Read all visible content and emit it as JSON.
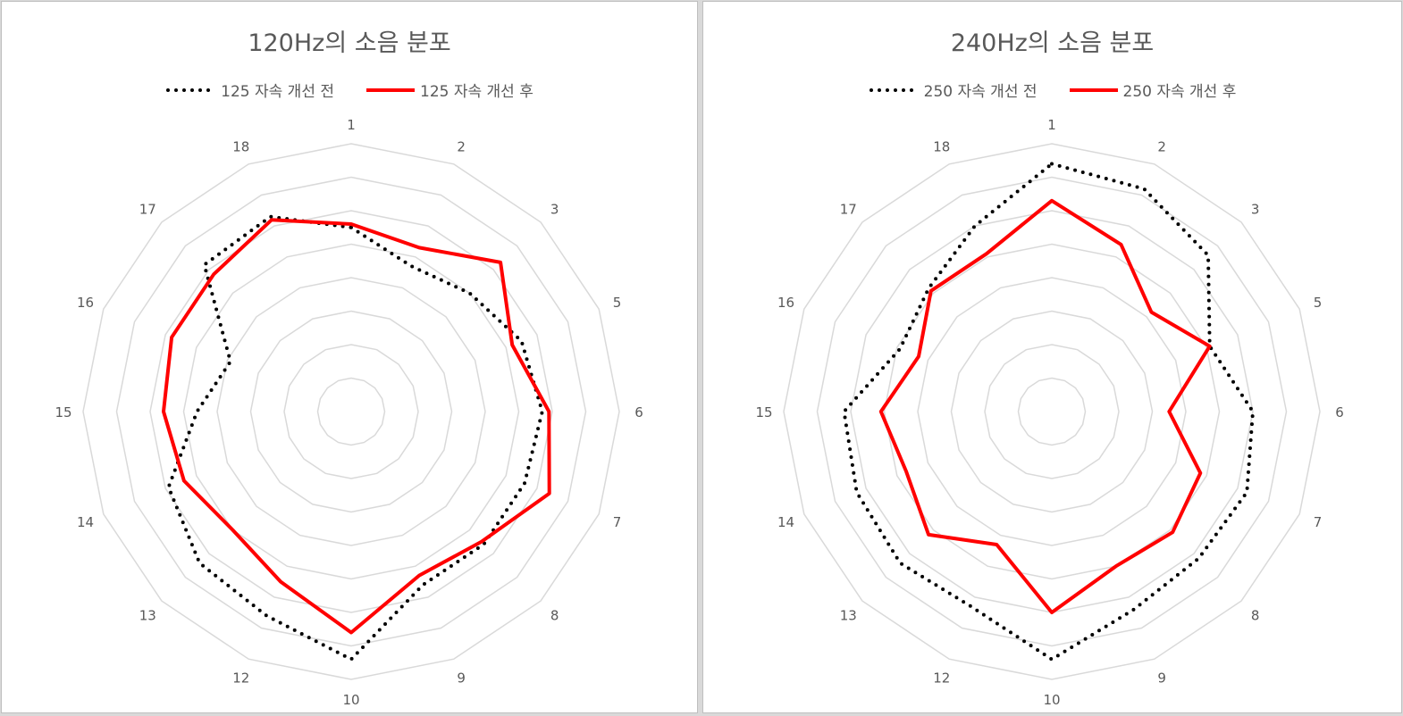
{
  "colors": {
    "before": "#000000",
    "after": "#ff0000",
    "grid": "#d9d9d9",
    "text": "#595959"
  },
  "chart_data": [
    {
      "type": "radar",
      "title": "120Hz의 소음 분포",
      "categories": [
        "1",
        "2",
        "3",
        "5",
        "6",
        "7",
        "8",
        "9",
        "10",
        "12",
        "13",
        "14",
        "15",
        "16",
        "17",
        "18"
      ],
      "rlim": [
        0,
        8
      ],
      "grid_levels": 8,
      "legend": "top",
      "series": [
        {
          "name": "125 자속 개선 전",
          "style": "dotted",
          "values": [
            5.5,
            4.7,
            5.0,
            5.5,
            5.7,
            5.6,
            5.6,
            5.6,
            7.4,
            6.6,
            6.4,
            5.9,
            4.6,
            3.9,
            6.2,
            6.3
          ]
        },
        {
          "name": "125 자속 개선 후",
          "style": "solid",
          "values": [
            5.6,
            5.3,
            6.3,
            5.2,
            5.9,
            6.4,
            5.5,
            5.3,
            6.6,
            5.5,
            5.0,
            5.4,
            5.6,
            5.8,
            5.8,
            6.2
          ]
        }
      ]
    },
    {
      "type": "radar",
      "title": "240Hz의 소음 분포",
      "categories": [
        "1",
        "2",
        "3",
        "5",
        "6",
        "7",
        "8",
        "9",
        "10",
        "12",
        "13",
        "14",
        "15",
        "16",
        "17",
        "18"
      ],
      "rlim": [
        0,
        8
      ],
      "grid_levels": 8,
      "legend": "top",
      "series": [
        {
          "name": "250 자속 개선 전",
          "style": "dotted",
          "values": [
            7.4,
            7.2,
            6.6,
            5.1,
            6.0,
            6.3,
            6.2,
            6.4,
            7.4,
            6.3,
            6.4,
            6.3,
            6.2,
            4.9,
            5.2,
            6.0
          ]
        },
        {
          "name": "250 자속 개선 후",
          "style": "solid",
          "values": [
            6.3,
            5.4,
            4.2,
            5.1,
            3.5,
            4.8,
            5.1,
            5.0,
            6.0,
            4.3,
            5.2,
            4.7,
            5.1,
            4.3,
            5.1,
            5.1
          ]
        }
      ]
    }
  ]
}
